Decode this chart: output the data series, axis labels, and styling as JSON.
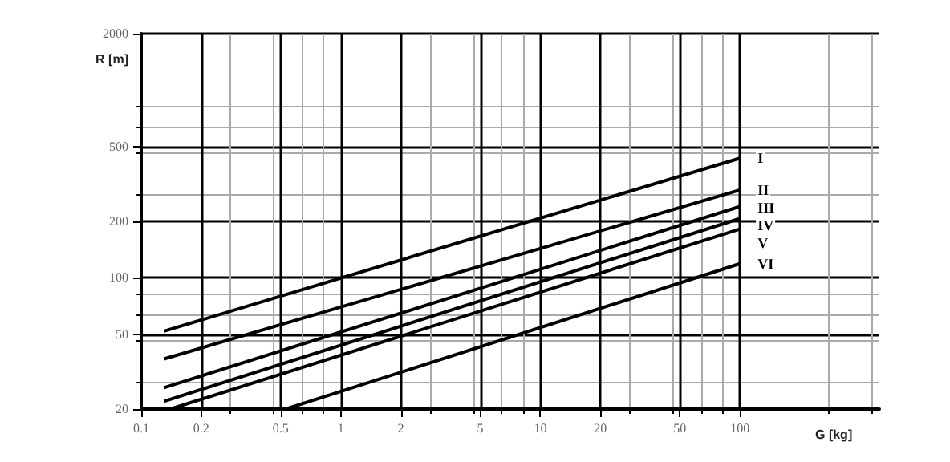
{
  "chart_data": {
    "type": "line",
    "xlabel": "G [kg]",
    "ylabel": "R [m]",
    "log": "xy",
    "grid": true,
    "legend": false,
    "marker": "none",
    "line_style": "solid",
    "xlim": [
      0.1,
      500
    ],
    "xticks": [
      0.1,
      0.2,
      0.5,
      1,
      2,
      5,
      10,
      20,
      50,
      100
    ],
    "ylim": [
      20,
      2000
    ],
    "yticks": [
      20,
      50,
      100,
      200,
      500,
      2000
    ],
    "series": [
      {
        "name": "I",
        "color": "#000000",
        "x": [
          0.13,
          100
        ],
        "values": [
          52,
          434
        ]
      },
      {
        "name": "II",
        "color": "#000000",
        "x": [
          0.13,
          100
        ],
        "values": [
          37,
          294
        ]
      },
      {
        "name": "III",
        "color": "#000000",
        "x": [
          0.13,
          100
        ],
        "values": [
          26,
          240
        ]
      },
      {
        "name": "IV",
        "color": "#000000",
        "x": [
          0.13,
          100
        ],
        "values": [
          22,
          207
        ]
      },
      {
        "name": "V",
        "color": "#000000",
        "x": [
          0.14,
          100
        ],
        "values": [
          20,
          182
        ]
      },
      {
        "name": "VI",
        "color": "#000000",
        "x": [
          0.53,
          100
        ],
        "values": [
          20,
          119
        ]
      }
    ]
  }
}
